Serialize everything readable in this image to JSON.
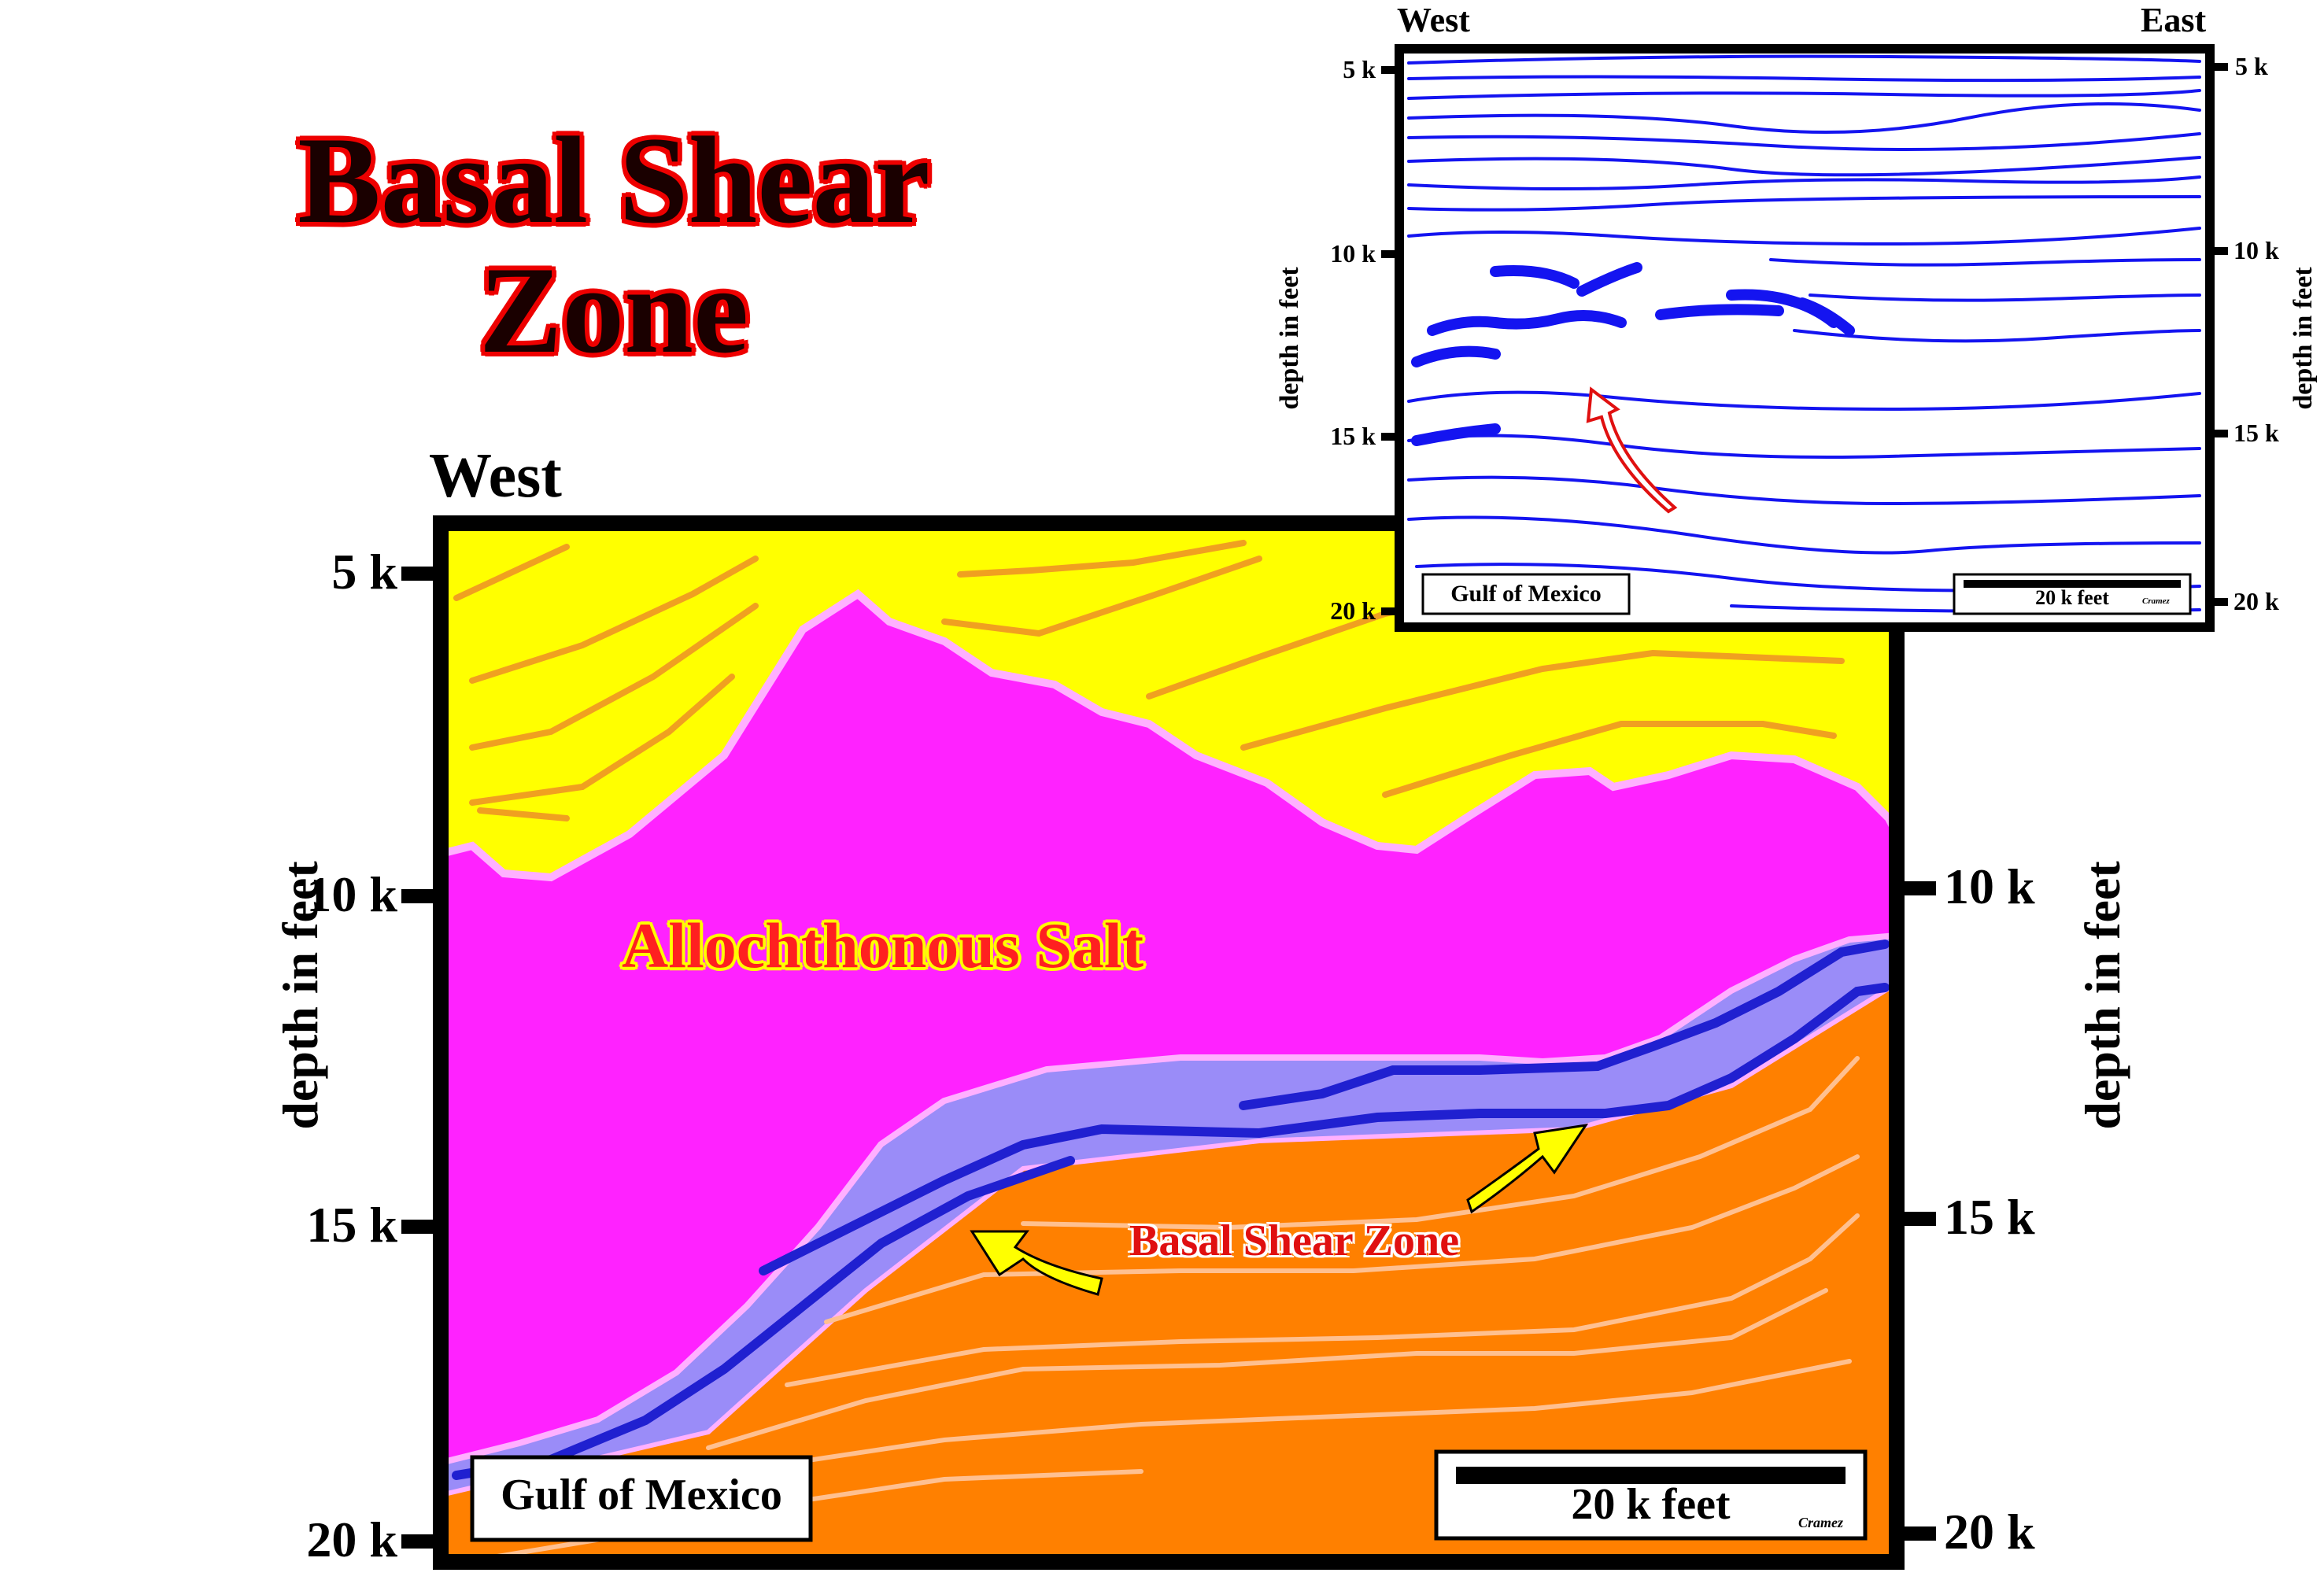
{
  "title": {
    "line1": "Basal Shear",
    "line2": "Zone"
  },
  "main_section": {
    "side_label_top": "West",
    "depth_axis_label": "depth in feet",
    "depth_ticks": [
      "5 k",
      "10 k",
      "15 k",
      "20 k"
    ],
    "unit_labels": {
      "salt": "Allochthonous Salt",
      "shear_zone": "Basal Shear Zone"
    },
    "location_box": "Gulf of Mexico",
    "scale_bar_label": "20 k feet",
    "signature": "Cramez",
    "colors": {
      "overburden": "#ffff00",
      "salt": "#ff22ff",
      "shear_zone": "#9a8cf8",
      "subsalt": "#ff8000",
      "reflector": "#2020d0"
    }
  },
  "seismic_inset": {
    "left_label": "West",
    "right_label": "East",
    "depth_axis_label": "depth in feet",
    "depth_ticks": [
      "5 k",
      "10 k",
      "15 k",
      "20 k"
    ],
    "location_box": "Gulf of Mexico",
    "scale_bar_label": "20 k feet",
    "signature": "Cramez"
  }
}
